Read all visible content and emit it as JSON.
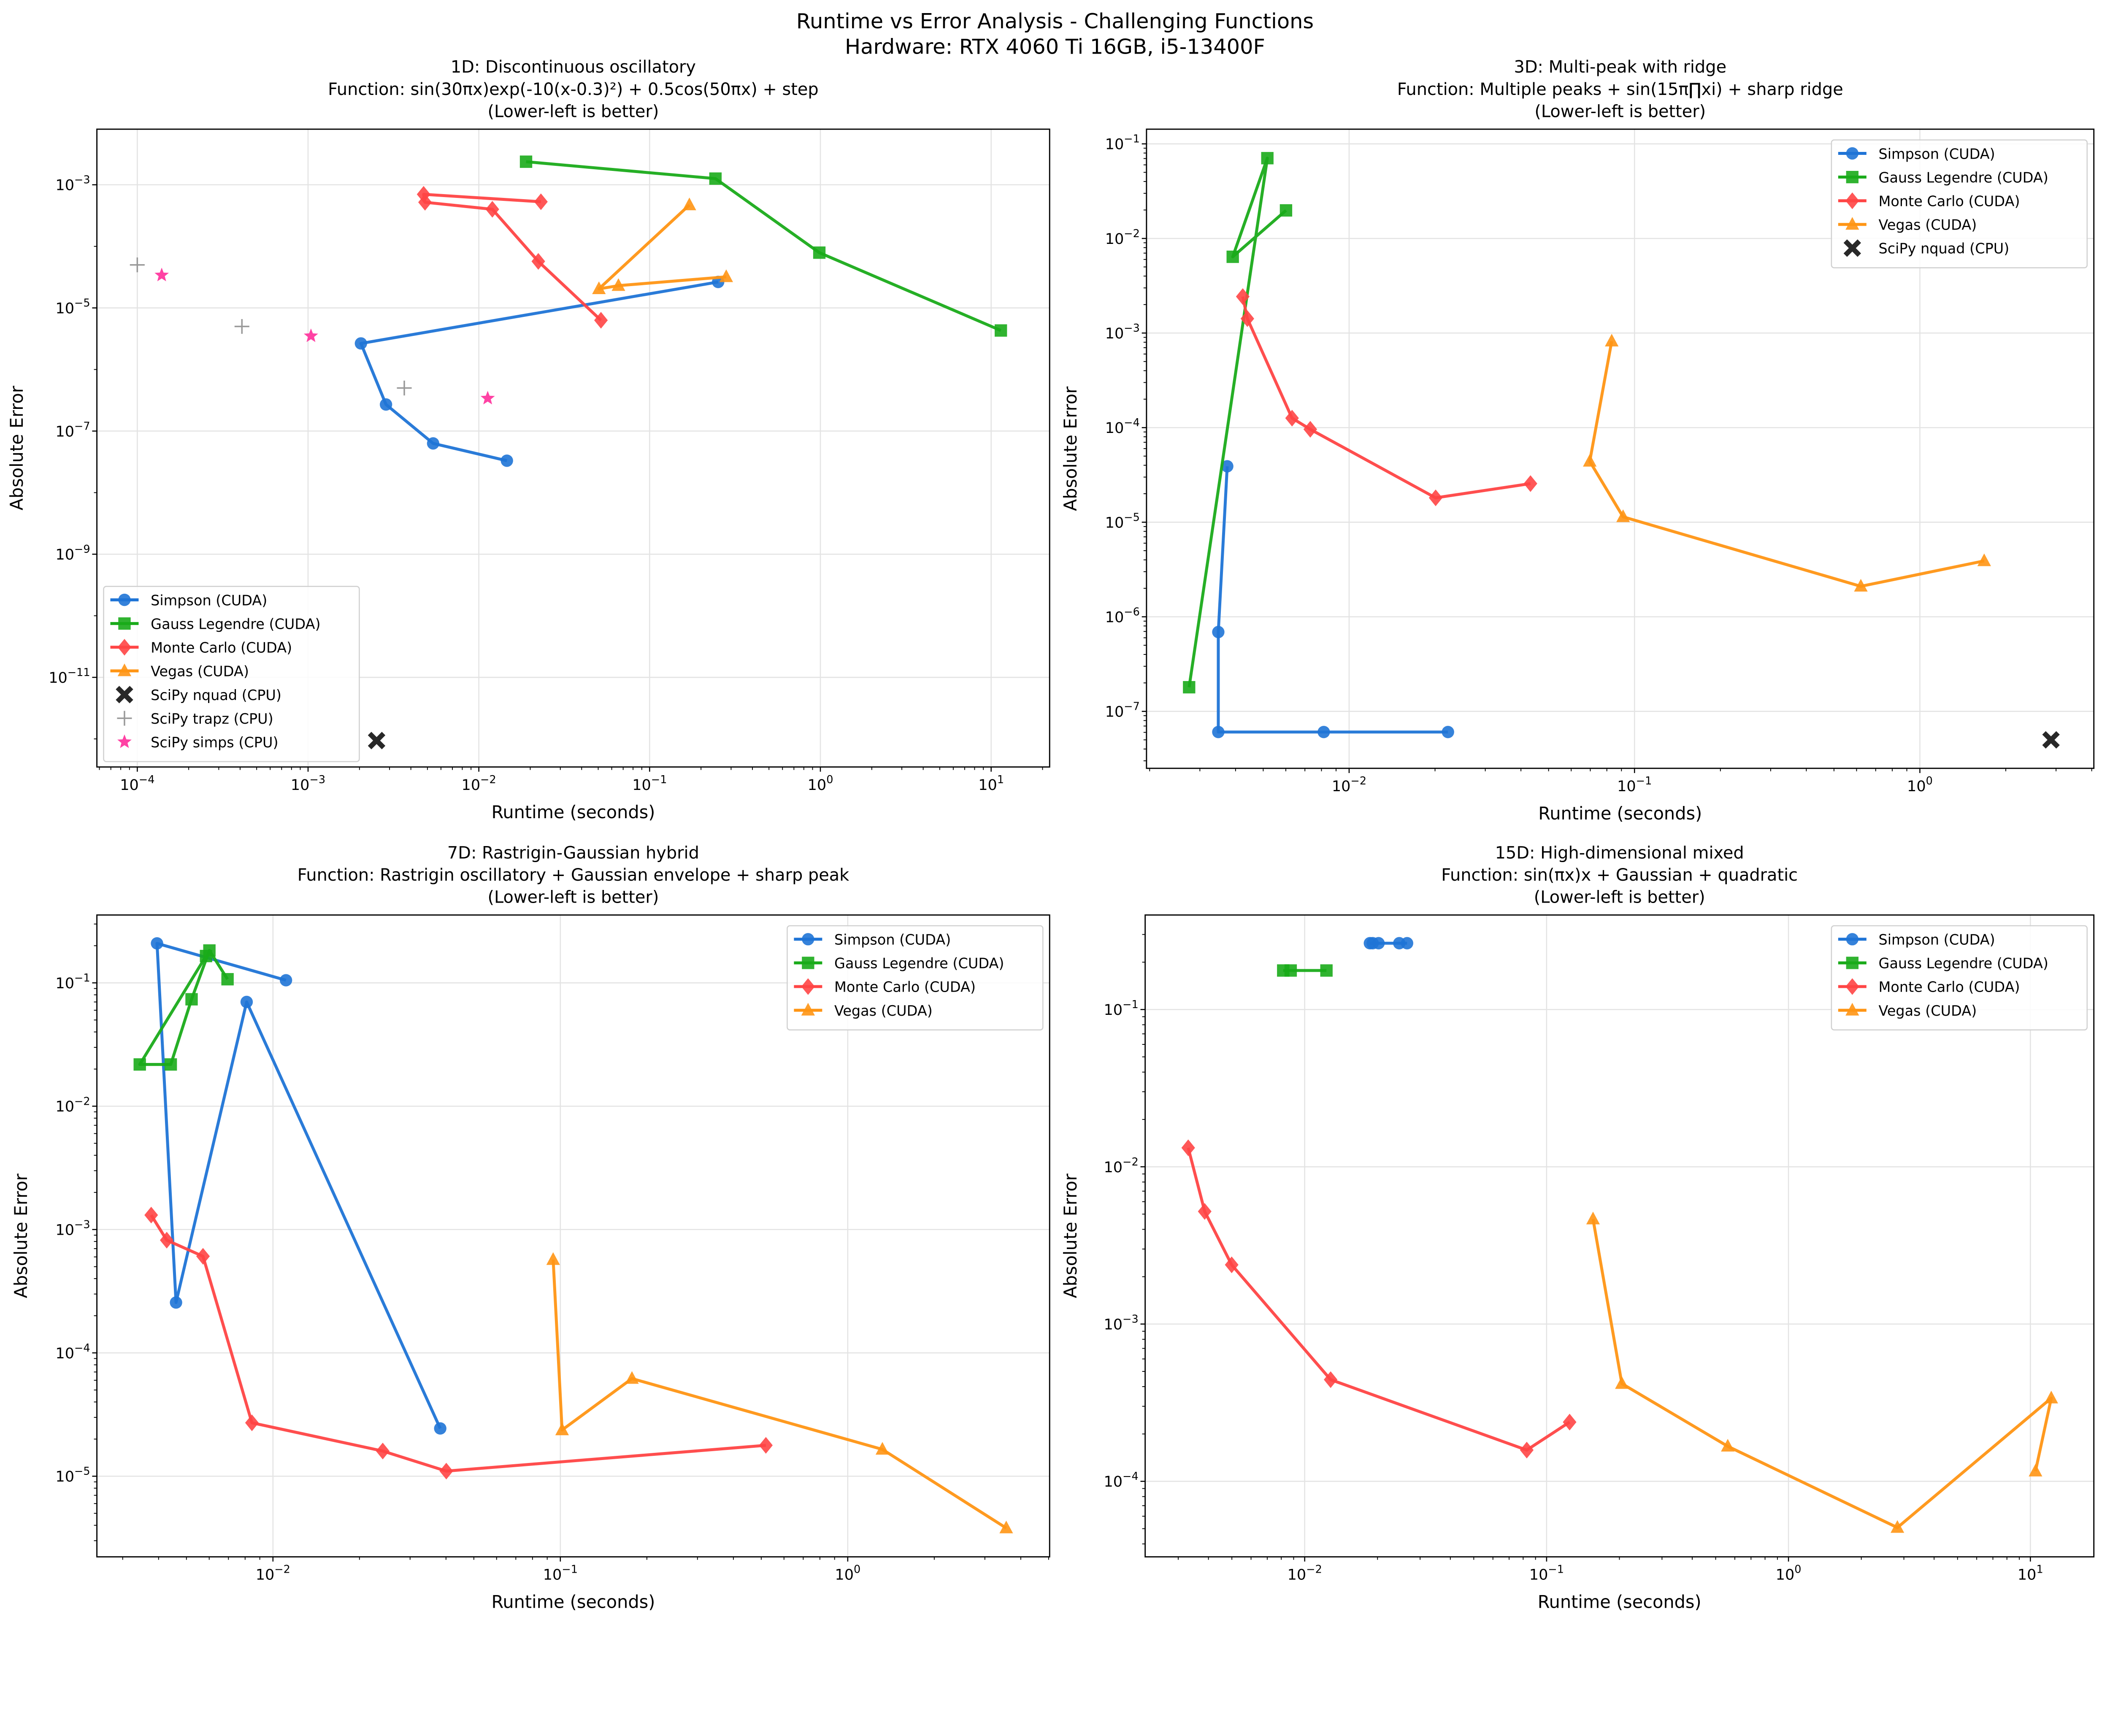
{
  "figure": {
    "title_line1": "Runtime vs Error Analysis - Challenging Functions",
    "title_line2": "Hardware: RTX 4060 Ti 16GB, i5-13400F"
  },
  "colors": {
    "simpson": "#1f74d6",
    "gauss": "#1aab1a",
    "monte_carlo": "#ff4545",
    "vegas": "#ff9514",
    "nquad": "#111111",
    "trapz": "#999999",
    "simps": "#ff2d9a"
  },
  "chart_data": [
    {
      "type": "line",
      "title": [
        "1D: Discontinuous oscillatory",
        "Function: sin(30πx)exp(-10(x-0.3)²) + 0.5cos(50πx) + step",
        "(Lower-left is better)"
      ],
      "xlabel": "Runtime (seconds)",
      "ylabel": "Absolute Error",
      "xscale": "log",
      "yscale": "log",
      "xlim": [
        5.8e-05,
        22
      ],
      "ylim": [
        3.5e-13,
        0.008
      ],
      "xticks": [
        -4,
        -3,
        -2,
        -1,
        0,
        1
      ],
      "yticks": [
        -11,
        -9,
        -7,
        -5,
        -3
      ],
      "grid": true,
      "legend": "lower-left",
      "series": [
        {
          "name": "Simpson (CUDA)",
          "color_key": "simpson",
          "marker": "circle",
          "connected": true,
          "points": [
            [
              0.252,
              2.64e-05
            ],
            [
              0.00204,
              2.65e-06
            ],
            [
              0.00286,
              2.7e-07
            ],
            [
              0.0054,
              6.3e-08
            ],
            [
              0.0146,
              3.3e-08
            ]
          ]
        },
        {
          "name": "Gauss Legendre (CUDA)",
          "color_key": "gauss",
          "marker": "square",
          "connected": true,
          "points": [
            [
              0.0189,
              0.00237
            ],
            [
              0.243,
              0.00126
            ],
            [
              0.986,
              7.9e-05
            ],
            [
              11.4,
              4.3e-06
            ]
          ]
        },
        {
          "name": "Monte Carlo (CUDA)",
          "color_key": "monte_carlo",
          "marker": "diamond",
          "connected": true,
          "points": [
            [
              0.0231,
              0.00053
            ],
            [
              0.00475,
              0.0007
            ],
            [
              0.00484,
              0.00052
            ],
            [
              0.012,
              0.0004
            ],
            [
              0.0223,
              5.7e-05
            ],
            [
              0.0519,
              6.3e-06
            ]
          ]
        },
        {
          "name": "Vegas (CUDA)",
          "color_key": "vegas",
          "marker": "triangle",
          "connected": true,
          "points": [
            [
              0.171,
              0.00047
            ],
            [
              0.0505,
              2.04e-05
            ],
            [
              0.0657,
              2.3e-05
            ],
            [
              0.281,
              3.2e-05
            ]
          ]
        },
        {
          "name": "SciPy nquad (CPU)",
          "color_key": "nquad",
          "marker": "x",
          "connected": false,
          "points": [
            [
              0.00252,
              9.4e-13
            ]
          ]
        },
        {
          "name": "SciPy trapz (CPU)",
          "color_key": "trapz",
          "marker": "plus",
          "connected": false,
          "points": [
            [
              0.0001,
              5e-05
            ],
            [
              0.00041,
              5e-06
            ],
            [
              0.00366,
              5e-07
            ]
          ]
        },
        {
          "name": "SciPy simps (CPU)",
          "color_key": "simps",
          "marker": "star",
          "connected": false,
          "points": [
            [
              0.000139,
              3.4e-05
            ],
            [
              0.00104,
              3.5e-06
            ],
            [
              0.01127,
              3.4e-07
            ]
          ]
        }
      ]
    },
    {
      "type": "line",
      "title": [
        "3D: Multi-peak with ridge",
        "Function: Multiple peaks + sin(15π∏xi) + sharp ridge",
        "(Lower-left is better)"
      ],
      "xlabel": "Runtime (seconds)",
      "ylabel": "Absolute Error",
      "xscale": "log",
      "yscale": "log",
      "xlim": [
        0.00195,
        4.07
      ],
      "ylim": [
        2.5e-08,
        0.143
      ],
      "xticks": [
        -2,
        -1,
        0
      ],
      "yticks": [
        -7,
        -6,
        -5,
        -4,
        -3,
        -2,
        -1
      ],
      "grid": true,
      "legend": "upper-right",
      "series": [
        {
          "name": "Simpson (CUDA)",
          "color_key": "simpson",
          "marker": "circle",
          "connected": true,
          "points": [
            [
              0.00374,
              3.9e-05
            ],
            [
              0.00348,
              6.9e-07
            ],
            [
              0.00348,
              6.05e-08
            ],
            [
              0.00815,
              6.05e-08
            ],
            [
              0.0222,
              6.05e-08
            ]
          ]
        },
        {
          "name": "Gauss Legendre (CUDA)",
          "color_key": "gauss",
          "marker": "square",
          "connected": true,
          "points": [
            [
              0.00275,
              1.8e-07
            ],
            [
              0.00517,
              0.0706
            ],
            [
              0.00391,
              0.0064
            ],
            [
              0.00601,
              0.0198
            ]
          ]
        },
        {
          "name": "Monte Carlo (CUDA)",
          "color_key": "monte_carlo",
          "marker": "diamond",
          "connected": true,
          "points": [
            [
              0.00424,
              0.00243
            ],
            [
              0.0044,
              0.00142
            ],
            [
              0.00631,
              0.000126
            ],
            [
              0.00731,
              9.6e-05
            ],
            [
              0.0201,
              1.81e-05
            ],
            [
              0.0432,
              2.56e-05
            ]
          ]
        },
        {
          "name": "Vegas (CUDA)",
          "color_key": "vegas",
          "marker": "triangle",
          "connected": true,
          "points": [
            [
              0.0832,
              0.00082
            ],
            [
              0.0697,
              4.4e-05
            ],
            [
              0.0912,
              1.14e-05
            ],
            [
              0.621,
              2.1e-06
            ],
            [
              1.68,
              3.9e-06
            ]
          ]
        },
        {
          "name": "SciPy nquad (CPU)",
          "color_key": "nquad",
          "marker": "x",
          "connected": false,
          "points": [
            [
              2.88,
              5e-08
            ]
          ]
        }
      ]
    },
    {
      "type": "line",
      "title": [
        "7D: Rastrigin-Gaussian hybrid",
        "Function: Rastrigin oscillatory + Gaussian envelope + sharp peak",
        "(Lower-left is better)"
      ],
      "xlabel": "Runtime (seconds)",
      "ylabel": "Absolute Error",
      "xscale": "log",
      "yscale": "log",
      "xlim": [
        0.00244,
        5.04
      ],
      "ylim": [
        2.22e-06,
        0.355
      ],
      "xticks": [
        -2,
        -1,
        0
      ],
      "yticks": [
        -5,
        -4,
        -3,
        -2,
        -1
      ],
      "grid": true,
      "legend": "upper-right",
      "series": [
        {
          "name": "Simpson (CUDA)",
          "color_key": "simpson",
          "marker": "circle",
          "connected": true,
          "points": [
            [
              0.0111,
              0.105
            ],
            [
              0.00395,
              0.209
            ],
            [
              0.0046,
              0.000256
            ],
            [
              0.0081,
              0.07
            ],
            [
              0.0382,
              2.44e-05
            ]
          ]
        },
        {
          "name": "Gauss Legendre (CUDA)",
          "color_key": "gauss",
          "marker": "square",
          "connected": true,
          "points": [
            [
              0.00585,
              0.165
            ],
            [
              0.00344,
              0.0218
            ],
            [
              0.00441,
              0.0218
            ],
            [
              0.00521,
              0.0736
            ],
            [
              0.00601,
              0.183
            ],
            [
              0.00695,
              0.107
            ]
          ]
        },
        {
          "name": "Monte Carlo (CUDA)",
          "color_key": "monte_carlo",
          "marker": "diamond",
          "connected": true,
          "points": [
            [
              0.00377,
              0.00131
            ],
            [
              0.00427,
              0.00082
            ],
            [
              0.00571,
              0.000607
            ],
            [
              0.00845,
              2.71e-05
            ],
            [
              0.0241,
              1.6e-05
            ],
            [
              0.0401,
              1.1e-05
            ],
            [
              0.519,
              1.78e-05
            ]
          ]
        },
        {
          "name": "Vegas (CUDA)",
          "color_key": "vegas",
          "marker": "triangle",
          "connected": true,
          "points": [
            [
              0.0944,
              0.00057
            ],
            [
              0.1014,
              2.37e-05
            ],
            [
              0.1775,
              6.19e-05
            ],
            [
              1.32,
              1.65e-05
            ],
            [
              3.56,
              3.8e-06
            ]
          ]
        }
      ]
    },
    {
      "type": "line",
      "title": [
        "15D: High-dimensional mixed",
        "Function: sin(πx)x + Gaussian + quadratic",
        "(Lower-left is better)"
      ],
      "xlabel": "Runtime (seconds)",
      "ylabel": "Absolute Error",
      "xscale": "log",
      "yscale": "log",
      "xlim": [
        0.00219,
        18.3
      ],
      "ylim": [
        3.31e-05,
        0.399
      ],
      "xticks": [
        -2,
        -1,
        0,
        1
      ],
      "yticks": [
        -4,
        -3,
        -2,
        -1
      ],
      "grid": true,
      "legend": "upper-right",
      "series": [
        {
          "name": "Simpson (CUDA)",
          "color_key": "simpson",
          "marker": "circle",
          "connected": true,
          "points": [
            [
              0.0186,
              0.264
            ],
            [
              0.0191,
              0.264
            ],
            [
              0.0202,
              0.264
            ],
            [
              0.0246,
              0.264
            ],
            [
              0.0265,
              0.264
            ]
          ]
        },
        {
          "name": "Gauss Legendre (CUDA)",
          "color_key": "gauss",
          "marker": "square",
          "connected": true,
          "points": [
            [
              0.00815,
              0.177
            ],
            [
              0.00875,
              0.177
            ],
            [
              0.0123,
              0.177
            ]
          ]
        },
        {
          "name": "Monte Carlo (CUDA)",
          "color_key": "monte_carlo",
          "marker": "diamond",
          "connected": true,
          "points": [
            [
              0.0033,
              0.0132
            ],
            [
              0.00386,
              0.0052
            ],
            [
              0.00499,
              0.00238
            ],
            [
              0.0128,
              0.000443
            ],
            [
              0.0828,
              0.000158
            ],
            [
              0.1245,
              0.000238
            ]
          ]
        },
        {
          "name": "Vegas (CUDA)",
          "color_key": "vegas",
          "marker": "triangle",
          "connected": true,
          "points": [
            [
              0.1556,
              0.00465
            ],
            [
              0.2047,
              0.000418
            ],
            [
              0.561,
              0.000167
            ],
            [
              2.82,
              5.08e-05
            ],
            [
              12.2,
              0.000338
            ],
            [
              10.5,
              0.000116
            ]
          ]
        }
      ]
    }
  ]
}
